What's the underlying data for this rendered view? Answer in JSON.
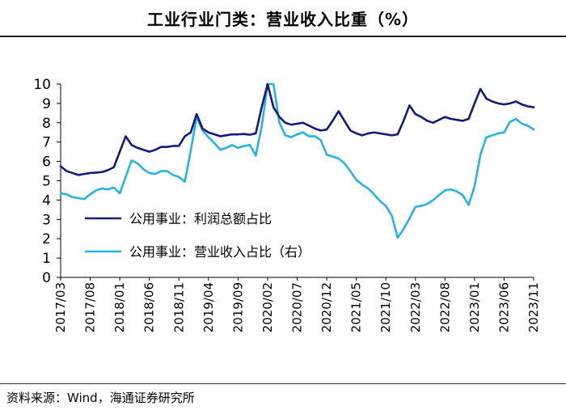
{
  "title": "工业行业门类：营业收入比重（%）",
  "source": "资料来源：Wind，海通证券研究所",
  "colors": {
    "series1": "#141a7a",
    "series2": "#25b3e6",
    "axis": "#000000"
  },
  "chart_data": {
    "type": "line",
    "title": "工业行业门类：营业收入比重（%）",
    "ylim": [
      0,
      10
    ],
    "yticks": [
      0,
      1,
      2,
      3,
      4,
      5,
      6,
      7,
      8,
      9,
      10
    ],
    "tick_labels": [
      "2017/03",
      "2017/08",
      "2018/01",
      "2018/06",
      "2018/11",
      "2019/04",
      "2019/09",
      "2020/02",
      "2020/07",
      "2020/12",
      "2021/05",
      "2021/10",
      "2022/03",
      "2022/08",
      "2023/01",
      "2023/06",
      "2023/11"
    ],
    "legend_position": "lower-left inside",
    "series": [
      {
        "name": "公用事业：利润总额占比",
        "values": [
          5.75,
          5.5,
          5.4,
          5.3,
          5.35,
          5.4,
          5.42,
          5.45,
          5.55,
          5.7,
          6.5,
          7.3,
          6.85,
          6.7,
          6.6,
          6.5,
          6.6,
          6.75,
          6.75,
          6.8,
          6.8,
          7.3,
          7.5,
          8.45,
          7.7,
          7.5,
          7.4,
          7.3,
          7.35,
          7.4,
          7.4,
          7.42,
          7.38,
          7.45,
          8.8,
          10.0,
          8.8,
          8.3,
          8.0,
          7.9,
          7.95,
          8.0,
          7.85,
          7.7,
          7.6,
          7.65,
          8.1,
          8.6,
          8.1,
          7.6,
          7.45,
          7.35,
          7.45,
          7.5,
          7.45,
          7.4,
          7.35,
          7.4,
          8.1,
          8.9,
          8.45,
          8.3,
          8.1,
          8.0,
          8.15,
          8.3,
          8.2,
          8.15,
          8.1,
          8.2,
          9.0,
          9.75,
          9.25,
          9.1,
          9.0,
          8.95,
          9.0,
          9.1,
          8.95,
          8.85,
          8.8
        ],
        "y_axis": "left"
      },
      {
        "name": "公用事业：营业收入占比（右）",
        "values": [
          4.35,
          4.3,
          4.15,
          4.1,
          4.05,
          4.3,
          4.5,
          4.6,
          4.55,
          4.65,
          4.35,
          5.2,
          6.05,
          5.9,
          5.6,
          5.4,
          5.35,
          5.5,
          5.5,
          5.3,
          5.2,
          4.95,
          6.55,
          8.3,
          7.6,
          7.25,
          6.95,
          6.6,
          6.7,
          6.85,
          6.7,
          6.8,
          6.85,
          6.3,
          7.8,
          10.0,
          10.0,
          8.0,
          7.35,
          7.25,
          7.4,
          7.5,
          7.3,
          7.3,
          7.1,
          6.35,
          6.25,
          6.15,
          5.9,
          5.5,
          5.05,
          4.8,
          4.6,
          4.3,
          3.95,
          3.7,
          3.2,
          2.05,
          2.5,
          3.05,
          3.65,
          3.7,
          3.8,
          4.0,
          4.25,
          4.5,
          4.55,
          4.45,
          4.25,
          3.75,
          4.7,
          6.35,
          7.25,
          7.35,
          7.45,
          7.5,
          8.05,
          8.2,
          7.95,
          7.85,
          7.65
        ],
        "y_axis": "right"
      }
    ]
  }
}
